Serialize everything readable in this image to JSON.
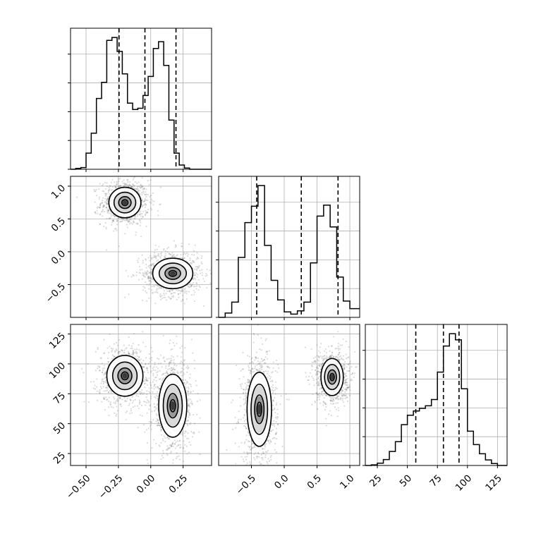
{
  "chart_data": {
    "type": "corner",
    "grid": true,
    "params": [
      {
        "range": [
          -0.62,
          0.47
        ],
        "ticks": [
          -0.5,
          -0.25,
          0.0,
          0.25
        ],
        "tick_labels": [
          "−0.50",
          "−0.25",
          "0.00",
          "0.25"
        ]
      },
      {
        "range": [
          -1.0,
          1.15
        ],
        "ticks": [
          -0.5,
          0.0,
          0.5,
          1.0
        ],
        "tick_labels": [
          "−0.5",
          "0.0",
          "0.5",
          "1.0"
        ]
      },
      {
        "range": [
          15,
          133
        ],
        "ticks": [
          25,
          50,
          75,
          100,
          125
        ],
        "tick_labels": [
          "25",
          "50",
          "75",
          "100",
          "125"
        ]
      }
    ],
    "histograms": [
      {
        "param": 0,
        "bin_edges": [
          -0.62,
          -0.58,
          -0.54,
          -0.5,
          -0.46,
          -0.42,
          -0.38,
          -0.34,
          -0.3,
          -0.26,
          -0.22,
          -0.18,
          -0.14,
          -0.1,
          -0.06,
          -0.02,
          0.02,
          0.06,
          0.1,
          0.14,
          0.18,
          0.22,
          0.26,
          0.3,
          0.34,
          0.38,
          0.42,
          0.47
        ],
        "counts": [
          0,
          0.2,
          0.4,
          3.8,
          8.5,
          16.7,
          20.5,
          30.4,
          31.1,
          27.8,
          22.5,
          15.6,
          14.1,
          14.4,
          17.4,
          21.9,
          28.5,
          30.1,
          24.5,
          11.6,
          3.8,
          1.0,
          0.3,
          0,
          0,
          0,
          0
        ],
        "quantiles": [
          -0.245,
          -0.045,
          0.195
        ]
      },
      {
        "param": 1,
        "bin_edges": [
          -1.0,
          -0.9,
          -0.8,
          -0.7,
          -0.6,
          -0.5,
          -0.4,
          -0.3,
          -0.2,
          -0.1,
          0.0,
          0.1,
          0.2,
          0.3,
          0.4,
          0.5,
          0.6,
          0.7,
          0.8,
          0.9,
          1.0,
          1.15
        ],
        "counts": [
          0,
          0.4,
          1.4,
          5.5,
          8.7,
          10.2,
          12.1,
          6.6,
          3.4,
          1.6,
          0.5,
          0.3,
          0.6,
          1.4,
          5.0,
          9.3,
          10.3,
          8.3,
          3.7,
          1.5,
          0.8
        ],
        "quantiles": [
          -0.42,
          0.26,
          0.82
        ]
      },
      {
        "param": 2,
        "bin_edges": [
          15,
          20,
          25,
          30,
          35,
          40,
          45,
          50,
          55,
          60,
          65,
          70,
          75,
          80,
          85,
          90,
          95,
          100,
          105,
          110,
          115,
          120,
          125,
          133
        ],
        "counts": [
          0,
          0.2,
          0.7,
          1.8,
          4.3,
          7.3,
          12.5,
          15.4,
          16.7,
          17.5,
          18.3,
          20.2,
          28.6,
          36.6,
          40.4,
          38.5,
          23.5,
          10.5,
          6.4,
          3.6,
          1.7,
          0.6,
          0
        ],
        "quantiles": [
          57,
          80,
          93
        ]
      }
    ],
    "pair_plots": [
      {
        "x_param": 0,
        "y_param": 1,
        "blobs": [
          {
            "center": [
              -0.2,
              0.75
            ],
            "sigma": [
              0.08,
              0.15
            ]
          },
          {
            "center": [
              0.17,
              -0.33
            ],
            "sigma": [
              0.1,
              0.15
            ]
          }
        ]
      },
      {
        "x_param": 0,
        "y_param": 2,
        "blobs": [
          {
            "center": [
              -0.2,
              90
            ],
            "sigma": [
              0.09,
              11
            ]
          },
          {
            "center": [
              0.17,
              65
            ],
            "sigma": [
              0.07,
              17
            ]
          }
        ]
      },
      {
        "x_param": 1,
        "y_param": 2,
        "blobs": [
          {
            "center": [
              -0.38,
              62
            ],
            "sigma": [
              0.12,
              20
            ]
          },
          {
            "center": [
              0.73,
              89
            ],
            "sigma": [
              0.11,
              10
            ]
          }
        ]
      }
    ]
  }
}
